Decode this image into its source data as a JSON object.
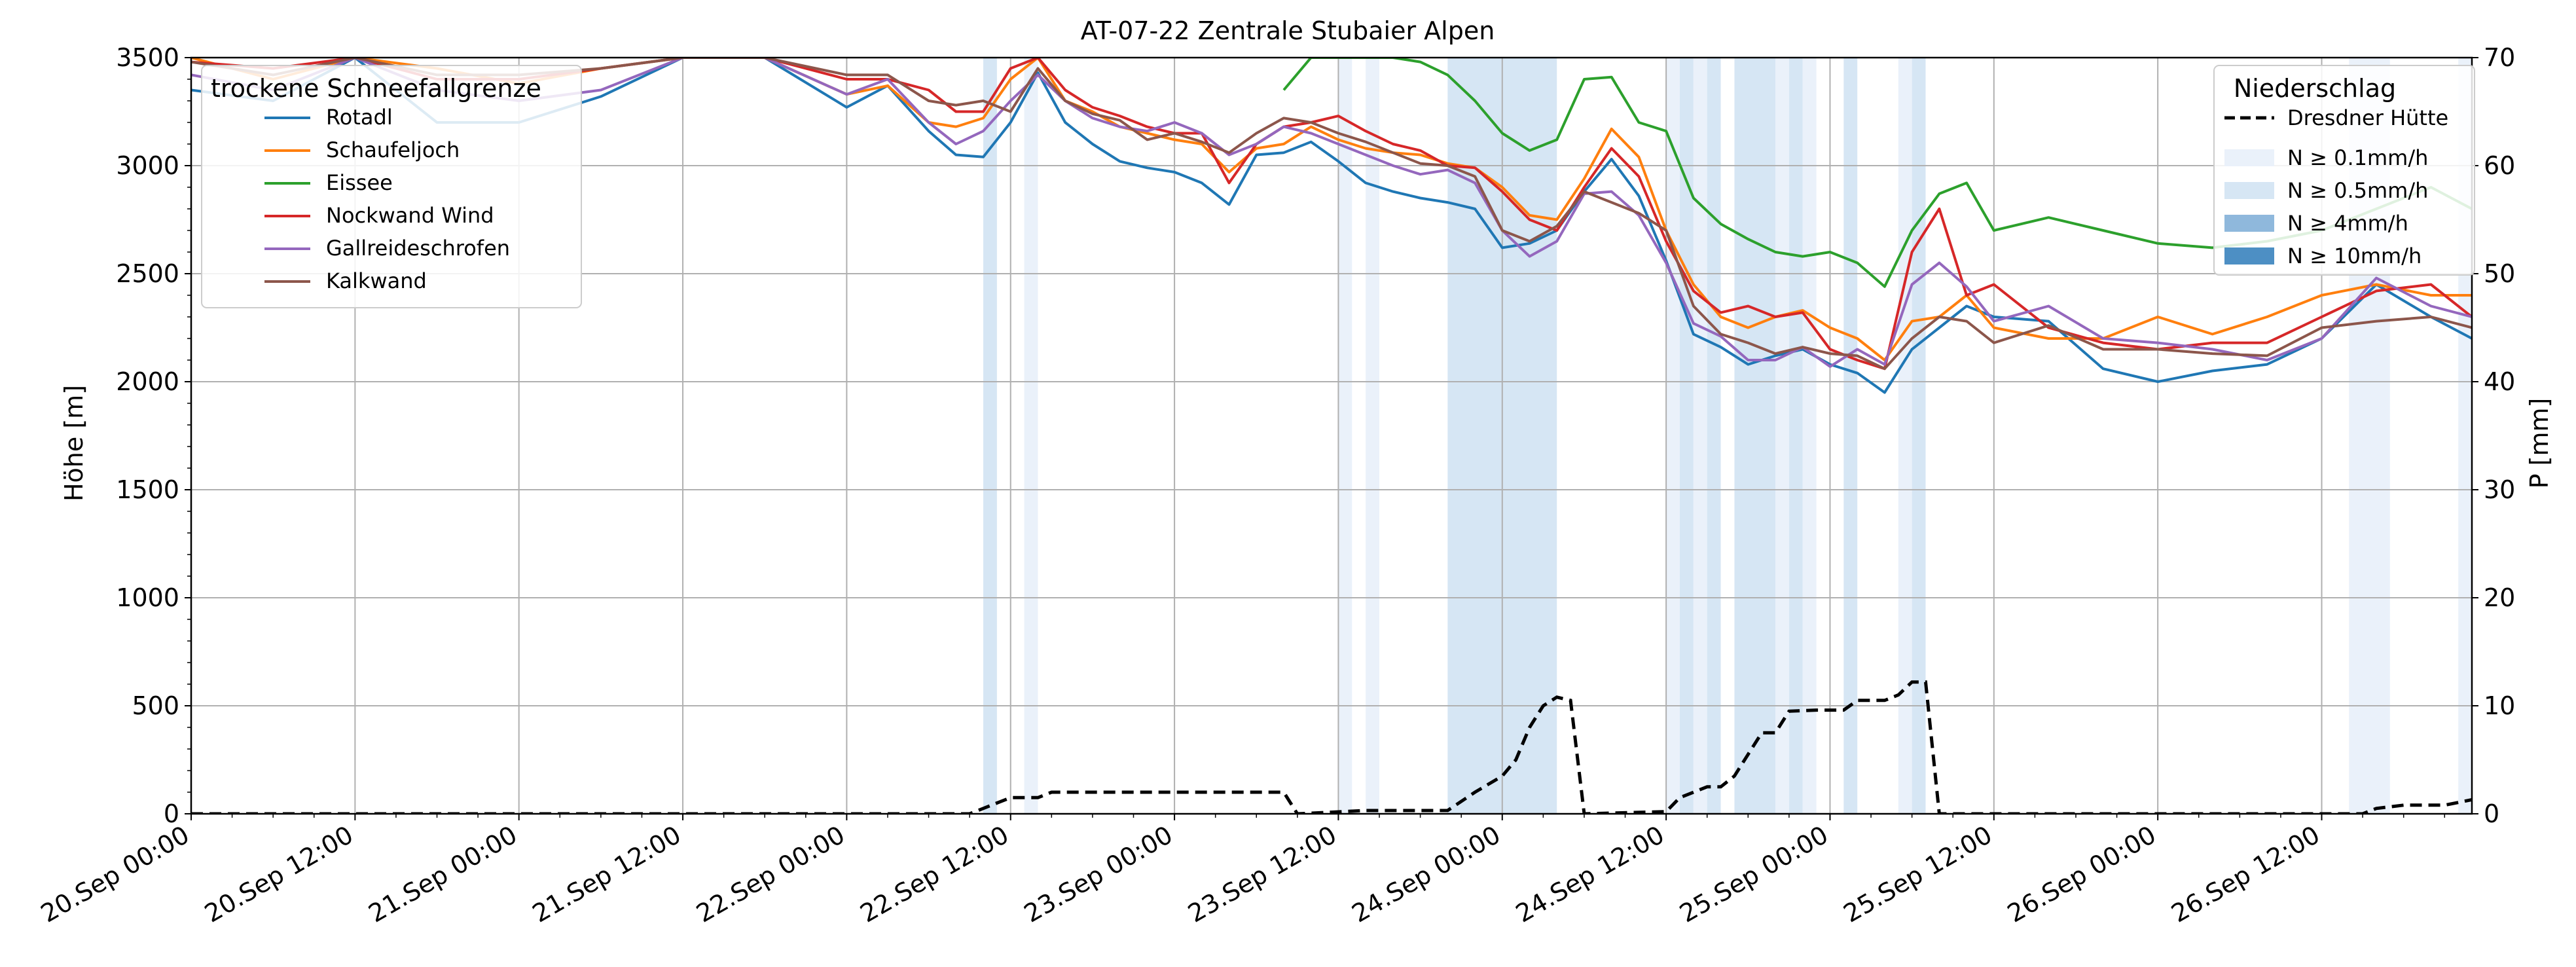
{
  "chart_data": {
    "type": "line",
    "title": "AT-07-22 Zentrale Stubaier Alpen",
    "ylabel": "Höhe [m]",
    "y2label": "P [mm]",
    "ylim": [
      0,
      3500
    ],
    "y2lim": [
      0,
      70
    ],
    "xlim": [
      "2022-09-20T00:00",
      "2022-09-26T23:00"
    ],
    "grid": true,
    "x_tick_labels": [
      "20.Sep 00:00",
      "20.Sep 12:00",
      "21.Sep 00:00",
      "21.Sep 12:00",
      "22.Sep 00:00",
      "22.Sep 12:00",
      "23.Sep 00:00",
      "23.Sep 12:00",
      "24.Sep 00:00",
      "24.Sep 12:00",
      "25.Sep 00:00",
      "25.Sep 12:00",
      "26.Sep 00:00",
      "26.Sep 12:00"
    ],
    "y_ticks": [
      0,
      500,
      1000,
      1500,
      2000,
      2500,
      3000,
      3500
    ],
    "y2_ticks": [
      0,
      10,
      20,
      30,
      40,
      50,
      60,
      70
    ],
    "legend_left": {
      "title": "trockene Schneefallgrenze",
      "placement": "top-left",
      "entries": [
        "Rotadl",
        "Schaufeljoch",
        "Eissee",
        "Nockwand Wind",
        "Gallreideschrofen",
        "Kalkwand"
      ]
    },
    "legend_right": {
      "title": "Niederschlag",
      "placement": "top-right",
      "line_entry": "Dresdner Hütte",
      "band_entries": [
        "N ≥ 0.1mm/h",
        "N ≥ 0.5mm/h",
        "N ≥ 4mm/h",
        "N ≥ 10mm/h"
      ]
    },
    "colors": {
      "Rotadl": "#1f77b4",
      "Schaufeljoch": "#ff7f0e",
      "Eissee": "#2ca02c",
      "Nockwand Wind": "#d62728",
      "Gallreideschrofen": "#9467bd",
      "Kalkwand": "#8c564b",
      "band_0.1": "#eaf1fa",
      "band_0.5": "#d6e6f4",
      "band_4": "#8fb8dc",
      "band_10": "#4d8fc4"
    },
    "precip_bands": [
      {
        "start": "2022-09-22T10:00",
        "end": "2022-09-22T11:00",
        "level": "0.5"
      },
      {
        "start": "2022-09-22T13:00",
        "end": "2022-09-22T14:00",
        "level": "0.1"
      },
      {
        "start": "2022-09-23T12:00",
        "end": "2022-09-23T13:00",
        "level": "0.1"
      },
      {
        "start": "2022-09-23T14:00",
        "end": "2022-09-23T15:00",
        "level": "0.1"
      },
      {
        "start": "2022-09-23T20:00",
        "end": "2022-09-24T04:00",
        "level": "0.5"
      },
      {
        "start": "2022-09-24T12:00",
        "end": "2022-09-24T13:00",
        "level": "0.1"
      },
      {
        "start": "2022-09-24T13:00",
        "end": "2022-09-24T14:00",
        "level": "0.5"
      },
      {
        "start": "2022-09-24T14:00",
        "end": "2022-09-24T15:00",
        "level": "0.1"
      },
      {
        "start": "2022-09-24T15:00",
        "end": "2022-09-24T16:00",
        "level": "0.5"
      },
      {
        "start": "2022-09-24T17:00",
        "end": "2022-09-24T20:00",
        "level": "0.5"
      },
      {
        "start": "2022-09-24T20:00",
        "end": "2022-09-24T21:00",
        "level": "0.1"
      },
      {
        "start": "2022-09-24T21:00",
        "end": "2022-09-24T22:00",
        "level": "0.5"
      },
      {
        "start": "2022-09-24T22:00",
        "end": "2022-09-24T23:00",
        "level": "0.1"
      },
      {
        "start": "2022-09-25T01:00",
        "end": "2022-09-25T02:00",
        "level": "0.5"
      },
      {
        "start": "2022-09-25T05:00",
        "end": "2022-09-25T06:00",
        "level": "0.1"
      },
      {
        "start": "2022-09-25T06:00",
        "end": "2022-09-25T07:00",
        "level": "0.5"
      },
      {
        "start": "2022-09-26T14:00",
        "end": "2022-09-26T17:00",
        "level": "0.1"
      },
      {
        "start": "2022-09-26T22:00",
        "end": "2022-09-26T23:00",
        "level": "0.1"
      }
    ],
    "x": [
      "2022-09-20T00:00",
      "2022-09-20T06:00",
      "2022-09-20T12:00",
      "2022-09-20T18:00",
      "2022-09-21T00:00",
      "2022-09-21T06:00",
      "2022-09-21T12:00",
      "2022-09-21T18:00",
      "2022-09-22T00:00",
      "2022-09-22T03:00",
      "2022-09-22T06:00",
      "2022-09-22T08:00",
      "2022-09-22T10:00",
      "2022-09-22T12:00",
      "2022-09-22T14:00",
      "2022-09-22T16:00",
      "2022-09-22T18:00",
      "2022-09-22T20:00",
      "2022-09-22T22:00",
      "2022-09-23T00:00",
      "2022-09-23T02:00",
      "2022-09-23T04:00",
      "2022-09-23T06:00",
      "2022-09-23T08:00",
      "2022-09-23T10:00",
      "2022-09-23T12:00",
      "2022-09-23T14:00",
      "2022-09-23T16:00",
      "2022-09-23T18:00",
      "2022-09-23T20:00",
      "2022-09-23T22:00",
      "2022-09-24T00:00",
      "2022-09-24T02:00",
      "2022-09-24T04:00",
      "2022-09-24T06:00",
      "2022-09-24T08:00",
      "2022-09-24T10:00",
      "2022-09-24T12:00",
      "2022-09-24T14:00",
      "2022-09-24T16:00",
      "2022-09-24T18:00",
      "2022-09-24T20:00",
      "2022-09-24T22:00",
      "2022-09-25T00:00",
      "2022-09-25T02:00",
      "2022-09-25T04:00",
      "2022-09-25T06:00",
      "2022-09-25T08:00",
      "2022-09-25T10:00",
      "2022-09-25T12:00",
      "2022-09-25T16:00",
      "2022-09-25T20:00",
      "2022-09-26T00:00",
      "2022-09-26T04:00",
      "2022-09-26T08:00",
      "2022-09-26T12:00",
      "2022-09-26T16:00",
      "2022-09-26T20:00",
      "2022-09-26T23:00"
    ],
    "series": [
      {
        "name": "Rotadl",
        "values": [
          3350,
          3300,
          3500,
          3200,
          3200,
          3320,
          3500,
          3500,
          3270,
          3370,
          3160,
          3050,
          3040,
          3200,
          3430,
          3200,
          3100,
          3020,
          2990,
          2970,
          2920,
          2820,
          3050,
          3060,
          3110,
          3020,
          2920,
          2880,
          2850,
          2830,
          2800,
          2620,
          2640,
          2700,
          2880,
          3030,
          2860,
          2560,
          2220,
          2160,
          2080,
          2120,
          2150,
          2080,
          2040,
          1950,
          2150,
          2250,
          2350,
          2300,
          2280,
          2060,
          2000,
          2050,
          2080,
          2200,
          2450,
          2300,
          2200
        ]
      },
      {
        "name": "Schaufeljoch",
        "values": [
          3500,
          3400,
          3500,
          3450,
          3380,
          3450,
          3500,
          3500,
          3330,
          3370,
          3200,
          3180,
          3220,
          3400,
          3500,
          3300,
          3250,
          3180,
          3150,
          3120,
          3100,
          2970,
          3080,
          3100,
          3180,
          3120,
          3080,
          3060,
          3050,
          3010,
          2990,
          2900,
          2770,
          2750,
          2940,
          3170,
          3040,
          2700,
          2450,
          2300,
          2250,
          2300,
          2330,
          2250,
          2200,
          2100,
          2280,
          2300,
          2400,
          2250,
          2200,
          2200,
          2300,
          2220,
          2300,
          2400,
          2450,
          2400,
          2400
        ]
      },
      {
        "name": "Eissee",
        "values": [
          null,
          null,
          null,
          null,
          null,
          null,
          null,
          null,
          null,
          null,
          null,
          null,
          null,
          null,
          null,
          null,
          null,
          null,
          null,
          null,
          null,
          null,
          null,
          3350,
          3500,
          3500,
          3500,
          3500,
          3480,
          3420,
          3300,
          3150,
          3070,
          3120,
          3400,
          3410,
          3200,
          3160,
          2850,
          2730,
          2660,
          2600,
          2580,
          2600,
          2550,
          2440,
          2700,
          2870,
          2920,
          2700,
          2760,
          2700,
          2640,
          2620,
          2650,
          2700,
          2800,
          2900,
          2800
        ]
      },
      {
        "name": "Nockwand Wind",
        "values": [
          3480,
          3450,
          3500,
          3400,
          3400,
          3450,
          3500,
          3500,
          3400,
          3400,
          3350,
          3250,
          3250,
          3450,
          3500,
          3350,
          3270,
          3230,
          3180,
          3150,
          3150,
          2920,
          3100,
          3180,
          3200,
          3230,
          3160,
          3100,
          3070,
          3000,
          2990,
          2880,
          2750,
          2700,
          2900,
          3080,
          2950,
          2650,
          2420,
          2320,
          2350,
          2300,
          2320,
          2150,
          2100,
          2060,
          2600,
          2800,
          2400,
          2450,
          2250,
          2180,
          2150,
          2180,
          2180,
          2300,
          2420,
          2450,
          2300
        ]
      },
      {
        "name": "Gallreideschrofen",
        "values": [
          3420,
          3350,
          3500,
          3350,
          3300,
          3350,
          3500,
          3500,
          3330,
          3400,
          3200,
          3100,
          3160,
          3300,
          3420,
          3300,
          3220,
          3180,
          3160,
          3200,
          3150,
          3050,
          3100,
          3180,
          3150,
          3100,
          3050,
          3000,
          2960,
          2980,
          2920,
          2700,
          2580,
          2650,
          2870,
          2880,
          2770,
          2550,
          2270,
          2210,
          2100,
          2100,
          2160,
          2070,
          2150,
          2080,
          2450,
          2550,
          2440,
          2280,
          2350,
          2200,
          2180,
          2150,
          2100,
          2200,
          2480,
          2350,
          2300
        ]
      },
      {
        "name": "Kalkwand",
        "values": [
          3480,
          3420,
          3500,
          3420,
          3420,
          3450,
          3500,
          3500,
          3420,
          3420,
          3300,
          3280,
          3300,
          3250,
          3450,
          3300,
          3240,
          3210,
          3120,
          3150,
          3110,
          3060,
          3150,
          3220,
          3200,
          3150,
          3110,
          3060,
          3010,
          3000,
          2950,
          2700,
          2650,
          2720,
          2880,
          2830,
          2780,
          2700,
          2350,
          2220,
          2180,
          2130,
          2160,
          2130,
          2120,
          2060,
          2200,
          2300,
          2280,
          2180,
          2260,
          2150,
          2150,
          2130,
          2120,
          2250,
          2280,
          2300,
          2250
        ]
      }
    ],
    "precip_line": {
      "name": "Dresdner Hütte",
      "color": "#000000",
      "style": "dashed",
      "points": [
        [
          "2022-09-20T00:00",
          0
        ],
        [
          "2022-09-22T09:00",
          0
        ],
        [
          "2022-09-22T11:00",
          1
        ],
        [
          "2022-09-22T12:00",
          1.5
        ],
        [
          "2022-09-22T14:00",
          1.5
        ],
        [
          "2022-09-22T15:00",
          2
        ],
        [
          "2022-09-23T08:00",
          2
        ],
        [
          "2022-09-23T09:00",
          0
        ],
        [
          "2022-09-23T14:00",
          0.3
        ],
        [
          "2022-09-23T20:00",
          0.3
        ],
        [
          "2022-09-23T22:00",
          2
        ],
        [
          "2022-09-24T00:00",
          3.5
        ],
        [
          "2022-09-24T01:00",
          5
        ],
        [
          "2022-09-24T02:00",
          8
        ],
        [
          "2022-09-24T03:00",
          10
        ],
        [
          "2022-09-24T04:00",
          10.8
        ],
        [
          "2022-09-24T05:00",
          10.5
        ],
        [
          "2022-09-24T06:00",
          0
        ],
        [
          "2022-09-24T12:00",
          0.2
        ],
        [
          "2022-09-24T13:00",
          1.5
        ],
        [
          "2022-09-24T15:00",
          2.5
        ],
        [
          "2022-09-24T16:00",
          2.5
        ],
        [
          "2022-09-24T17:00",
          3.5
        ],
        [
          "2022-09-24T19:00",
          7.5
        ],
        [
          "2022-09-24T20:00",
          7.5
        ],
        [
          "2022-09-24T21:00",
          9.5
        ],
        [
          "2022-09-24T23:00",
          9.6
        ],
        [
          "2022-09-25T01:00",
          9.6
        ],
        [
          "2022-09-25T02:00",
          10.5
        ],
        [
          "2022-09-25T04:00",
          10.5
        ],
        [
          "2022-09-25T05:00",
          11
        ],
        [
          "2022-09-25T06:00",
          12.2
        ],
        [
          "2022-09-25T07:00",
          12.2
        ],
        [
          "2022-09-25T08:00",
          0
        ],
        [
          "2022-09-26T15:00",
          0
        ],
        [
          "2022-09-26T16:00",
          0.5
        ],
        [
          "2022-09-26T18:00",
          0.8
        ],
        [
          "2022-09-26T21:00",
          0.8
        ],
        [
          "2022-09-26T23:00",
          1.3
        ]
      ]
    }
  }
}
